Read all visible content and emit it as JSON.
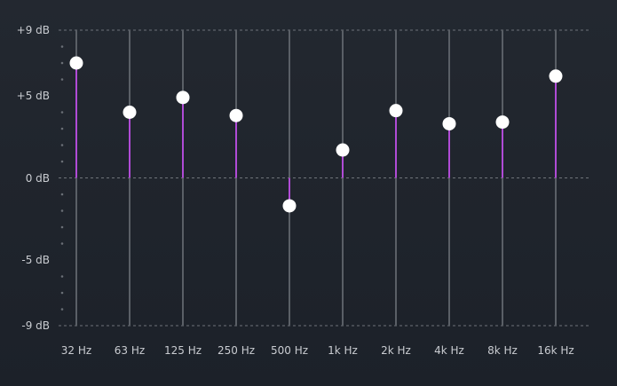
{
  "equalizer": {
    "db_scale": {
      "max": 9,
      "min": -9,
      "labels": [
        {
          "value": 9,
          "text": "+9 dB"
        },
        {
          "value": 5,
          "text": "+5 dB"
        },
        {
          "value": 0,
          "text": "0 dB"
        },
        {
          "value": -5,
          "text": "-5 dB"
        },
        {
          "value": -9,
          "text": "-9 dB"
        }
      ]
    },
    "bands": [
      {
        "label": "32 Hz",
        "gain_db": 7.0
      },
      {
        "label": "63 Hz",
        "gain_db": 4.0
      },
      {
        "label": "125 Hz",
        "gain_db": 4.9
      },
      {
        "label": "250 Hz",
        "gain_db": 3.8
      },
      {
        "label": "500 Hz",
        "gain_db": -1.7
      },
      {
        "label": "1k Hz",
        "gain_db": 1.7
      },
      {
        "label": "2k Hz",
        "gain_db": 4.1
      },
      {
        "label": "4k Hz",
        "gain_db": 3.3
      },
      {
        "label": "8k Hz",
        "gain_db": 3.4
      },
      {
        "label": "16k Hz",
        "gain_db": 6.2
      }
    ],
    "colors": {
      "gain_bar": "#b04bd6",
      "knob": "#ffffff",
      "track": "#5a5f66",
      "guide": "#6e737a",
      "text": "#c9ccd1"
    }
  }
}
